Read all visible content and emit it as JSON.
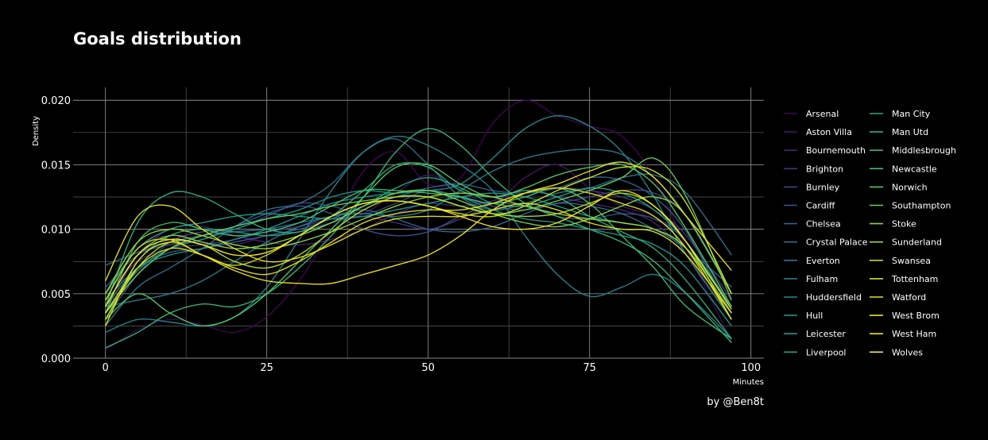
{
  "chart_data": {
    "type": "line",
    "title": "Goals distribution",
    "xlabel": "Minutes",
    "ylabel": "Density",
    "caption": "by @Ben8t",
    "xlim": [
      -5,
      102
    ],
    "ylim": [
      0,
      0.021
    ],
    "xticks": [
      0,
      25,
      50,
      75,
      100
    ],
    "xtick_labels": [
      "0",
      "25",
      "50",
      "75",
      "100"
    ],
    "yticks": [
      0,
      0.005,
      0.01,
      0.015,
      0.02
    ],
    "ytick_labels": [
      "0.000",
      "0.005",
      "0.010",
      "0.015",
      "0.020"
    ],
    "grid": true,
    "legend_placement": "right",
    "x": [
      0,
      5,
      10,
      15,
      20,
      25,
      30,
      35,
      40,
      45,
      50,
      55,
      60,
      65,
      70,
      75,
      80,
      85,
      90,
      97
    ],
    "series": [
      {
        "name": "Arsenal",
        "color": "#440154",
        "values": [
          0.0006,
          0.0022,
          0.003,
          0.0026,
          0.002,
          0.0032,
          0.006,
          0.01,
          0.0145,
          0.016,
          0.0135,
          0.014,
          0.0182,
          0.02,
          0.0188,
          0.018,
          0.0172,
          0.014,
          0.0085,
          0.0013
        ]
      },
      {
        "name": "Aston Villa",
        "color": "#471365",
        "values": [
          0.0045,
          0.0085,
          0.0095,
          0.009,
          0.0088,
          0.0095,
          0.01,
          0.0105,
          0.0112,
          0.0128,
          0.0142,
          0.013,
          0.012,
          0.014,
          0.015,
          0.0132,
          0.0118,
          0.011,
          0.009,
          0.004
        ]
      },
      {
        "name": "Bournemouth",
        "color": "#482576",
        "values": [
          0.0035,
          0.008,
          0.01,
          0.0102,
          0.0095,
          0.009,
          0.0088,
          0.0092,
          0.01,
          0.0112,
          0.012,
          0.0118,
          0.0122,
          0.013,
          0.0125,
          0.012,
          0.0115,
          0.0105,
          0.008,
          0.003
        ]
      },
      {
        "name": "Brighton",
        "color": "#463480",
        "values": [
          0.005,
          0.0075,
          0.0085,
          0.0088,
          0.0092,
          0.0098,
          0.0102,
          0.0108,
          0.011,
          0.0105,
          0.01,
          0.0108,
          0.012,
          0.0128,
          0.0132,
          0.013,
          0.0125,
          0.0115,
          0.0095,
          0.0045
        ]
      },
      {
        "name": "Burnley",
        "color": "#414487",
        "values": [
          0.003,
          0.0065,
          0.009,
          0.0098,
          0.01,
          0.011,
          0.012,
          0.0118,
          0.0112,
          0.012,
          0.013,
          0.0125,
          0.0118,
          0.0115,
          0.012,
          0.0125,
          0.013,
          0.0128,
          0.011,
          0.005
        ]
      },
      {
        "name": "Cardiff",
        "color": "#3b528b",
        "values": [
          0.0055,
          0.008,
          0.0088,
          0.0092,
          0.0102,
          0.0112,
          0.0118,
          0.0112,
          0.01,
          0.0095,
          0.0098,
          0.011,
          0.012,
          0.0118,
          0.011,
          0.0108,
          0.0112,
          0.0108,
          0.009,
          0.004
        ]
      },
      {
        "name": "Chelsea",
        "color": "#355f8d",
        "values": [
          0.004,
          0.007,
          0.0082,
          0.0085,
          0.009,
          0.0095,
          0.01,
          0.0108,
          0.0118,
          0.0125,
          0.0132,
          0.0135,
          0.013,
          0.0128,
          0.0132,
          0.014,
          0.0138,
          0.0125,
          0.0098,
          0.0035
        ]
      },
      {
        "name": "Crystal Palace",
        "color": "#306a8e",
        "values": [
          0.0072,
          0.0082,
          0.009,
          0.0095,
          0.0098,
          0.01,
          0.0105,
          0.011,
          0.0115,
          0.0108,
          0.01,
          0.0098,
          0.0102,
          0.0112,
          0.012,
          0.0118,
          0.0112,
          0.01,
          0.0085,
          0.0055
        ]
      },
      {
        "name": "Everton",
        "color": "#2c738e",
        "values": [
          0.0025,
          0.0055,
          0.007,
          0.0085,
          0.0102,
          0.0115,
          0.012,
          0.0135,
          0.016,
          0.017,
          0.015,
          0.0125,
          0.0115,
          0.012,
          0.0128,
          0.0132,
          0.014,
          0.0142,
          0.0128,
          0.008
        ]
      },
      {
        "name": "Fulham",
        "color": "#287d8e",
        "values": [
          0.004,
          0.0045,
          0.005,
          0.006,
          0.0075,
          0.009,
          0.0102,
          0.011,
          0.0112,
          0.011,
          0.0115,
          0.013,
          0.0145,
          0.0155,
          0.016,
          0.0162,
          0.0158,
          0.014,
          0.011,
          0.005
        ]
      },
      {
        "name": "Huddersfield",
        "color": "#25858e",
        "values": [
          0.002,
          0.003,
          0.0028,
          0.0025,
          0.0032,
          0.0055,
          0.0092,
          0.013,
          0.016,
          0.0172,
          0.0165,
          0.015,
          0.013,
          0.0095,
          0.0065,
          0.0048,
          0.0055,
          0.0065,
          0.005,
          0.0015
        ]
      },
      {
        "name": "Hull",
        "color": "#218f8d",
        "values": [
          0.0045,
          0.007,
          0.008,
          0.0085,
          0.0092,
          0.01,
          0.011,
          0.012,
          0.0125,
          0.0128,
          0.013,
          0.0135,
          0.0155,
          0.0178,
          0.0188,
          0.018,
          0.016,
          0.0125,
          0.008,
          0.003
        ]
      },
      {
        "name": "Leicester",
        "color": "#1f988b",
        "values": [
          0.0035,
          0.0068,
          0.0085,
          0.0092,
          0.01,
          0.0108,
          0.0115,
          0.0125,
          0.013,
          0.0128,
          0.013,
          0.0125,
          0.0115,
          0.0108,
          0.0105,
          0.01,
          0.0095,
          0.0088,
          0.007,
          0.0025
        ]
      },
      {
        "name": "Liverpool",
        "color": "#1fa088",
        "values": [
          0.005,
          0.0085,
          0.01,
          0.0105,
          0.011,
          0.0112,
          0.011,
          0.0108,
          0.011,
          0.0115,
          0.012,
          0.0125,
          0.0128,
          0.0125,
          0.0118,
          0.011,
          0.0105,
          0.01,
          0.0085,
          0.004
        ]
      },
      {
        "name": "Man City",
        "color": "#22a884",
        "values": [
          0.003,
          0.0075,
          0.0095,
          0.01,
          0.0098,
          0.0095,
          0.0098,
          0.0105,
          0.0118,
          0.0132,
          0.014,
          0.0132,
          0.012,
          0.0118,
          0.0125,
          0.0132,
          0.0128,
          0.0115,
          0.009,
          0.004
        ]
      },
      {
        "name": "Man Utd",
        "color": "#2ab07f",
        "values": [
          0.004,
          0.0105,
          0.0128,
          0.0125,
          0.0112,
          0.01,
          0.0098,
          0.011,
          0.013,
          0.015,
          0.0148,
          0.013,
          0.0125,
          0.013,
          0.0125,
          0.011,
          0.0098,
          0.0085,
          0.006,
          0.0015
        ]
      },
      {
        "name": "Middlesbrough",
        "color": "#35b779",
        "values": [
          0.0008,
          0.002,
          0.0035,
          0.0042,
          0.004,
          0.005,
          0.007,
          0.0095,
          0.0125,
          0.016,
          0.0178,
          0.0165,
          0.014,
          0.012,
          0.011,
          0.01,
          0.009,
          0.0075,
          0.005,
          0.0012
        ]
      },
      {
        "name": "Newcastle",
        "color": "#44bf70",
        "values": [
          0.0035,
          0.009,
          0.0105,
          0.01,
          0.0095,
          0.0098,
          0.0105,
          0.0118,
          0.013,
          0.013,
          0.0128,
          0.0125,
          0.012,
          0.0125,
          0.0132,
          0.012,
          0.0095,
          0.007,
          0.004,
          0.0015
        ]
      },
      {
        "name": "Norwich",
        "color": "#56c667",
        "values": [
          0.003,
          0.005,
          0.0035,
          0.0025,
          0.0032,
          0.005,
          0.0075,
          0.01,
          0.0125,
          0.0148,
          0.015,
          0.0135,
          0.0125,
          0.0132,
          0.0142,
          0.0148,
          0.015,
          0.0135,
          0.01,
          0.004
        ]
      },
      {
        "name": "Southampton",
        "color": "#6ccd5a",
        "values": [
          0.0035,
          0.0065,
          0.0085,
          0.0095,
          0.0102,
          0.0108,
          0.0112,
          0.0118,
          0.0122,
          0.0125,
          0.0125,
          0.0118,
          0.0112,
          0.0115,
          0.0122,
          0.013,
          0.014,
          0.0155,
          0.0125,
          0.0045
        ]
      },
      {
        "name": "Stoke",
        "color": "#84d44b",
        "values": [
          0.004,
          0.008,
          0.0095,
          0.009,
          0.0085,
          0.0088,
          0.0095,
          0.0105,
          0.0118,
          0.0128,
          0.013,
          0.0122,
          0.0112,
          0.0105,
          0.0102,
          0.0108,
          0.0118,
          0.0125,
          0.011,
          0.005
        ]
      },
      {
        "name": "Sunderland",
        "color": "#9bd93c",
        "values": [
          0.005,
          0.009,
          0.01,
          0.0095,
          0.0088,
          0.0085,
          0.009,
          0.0098,
          0.0108,
          0.0118,
          0.0125,
          0.0128,
          0.0125,
          0.0118,
          0.0112,
          0.0108,
          0.0105,
          0.01,
          0.0085,
          0.0035
        ]
      },
      {
        "name": "Swansea",
        "color": "#b5de2b",
        "values": [
          0.003,
          0.007,
          0.009,
          0.0088,
          0.0075,
          0.007,
          0.008,
          0.0098,
          0.0115,
          0.0125,
          0.0125,
          0.0118,
          0.0112,
          0.011,
          0.0112,
          0.012,
          0.0128,
          0.0118,
          0.009,
          0.003
        ]
      },
      {
        "name": "Tottenham",
        "color": "#cde11d",
        "values": [
          0.0045,
          0.0085,
          0.0092,
          0.008,
          0.0072,
          0.008,
          0.0095,
          0.011,
          0.012,
          0.0122,
          0.0118,
          0.0112,
          0.011,
          0.0118,
          0.013,
          0.014,
          0.0148,
          0.0145,
          0.012,
          0.005
        ]
      },
      {
        "name": "Watford",
        "color": "#e5e419",
        "values": [
          0.0035,
          0.007,
          0.0085,
          0.008,
          0.007,
          0.0065,
          0.0075,
          0.009,
          0.0105,
          0.0112,
          0.0115,
          0.0115,
          0.012,
          0.0128,
          0.0132,
          0.0128,
          0.012,
          0.011,
          0.0085,
          0.003
        ]
      },
      {
        "name": "West Brom",
        "color": "#e8e520",
        "values": [
          0.006,
          0.011,
          0.0118,
          0.01,
          0.0085,
          0.0075,
          0.0078,
          0.0088,
          0.01,
          0.0108,
          0.011,
          0.011,
          0.0115,
          0.012,
          0.0115,
          0.0105,
          0.01,
          0.0098,
          0.008,
          0.0035
        ]
      },
      {
        "name": "West Ham",
        "color": "#f0e51f",
        "values": [
          0.0025,
          0.0075,
          0.009,
          0.008,
          0.0068,
          0.006,
          0.0058,
          0.0058,
          0.0065,
          0.0072,
          0.008,
          0.0095,
          0.0115,
          0.0128,
          0.0135,
          0.0145,
          0.0152,
          0.014,
          0.011,
          0.0068
        ]
      },
      {
        "name": "Wolves",
        "color": "#fde725",
        "values": [
          0.004,
          0.008,
          0.0092,
          0.0088,
          0.008,
          0.0082,
          0.0095,
          0.011,
          0.012,
          0.0122,
          0.0118,
          0.011,
          0.0102,
          0.01,
          0.0105,
          0.0118,
          0.013,
          0.0118,
          0.009,
          0.0038
        ]
      }
    ]
  }
}
